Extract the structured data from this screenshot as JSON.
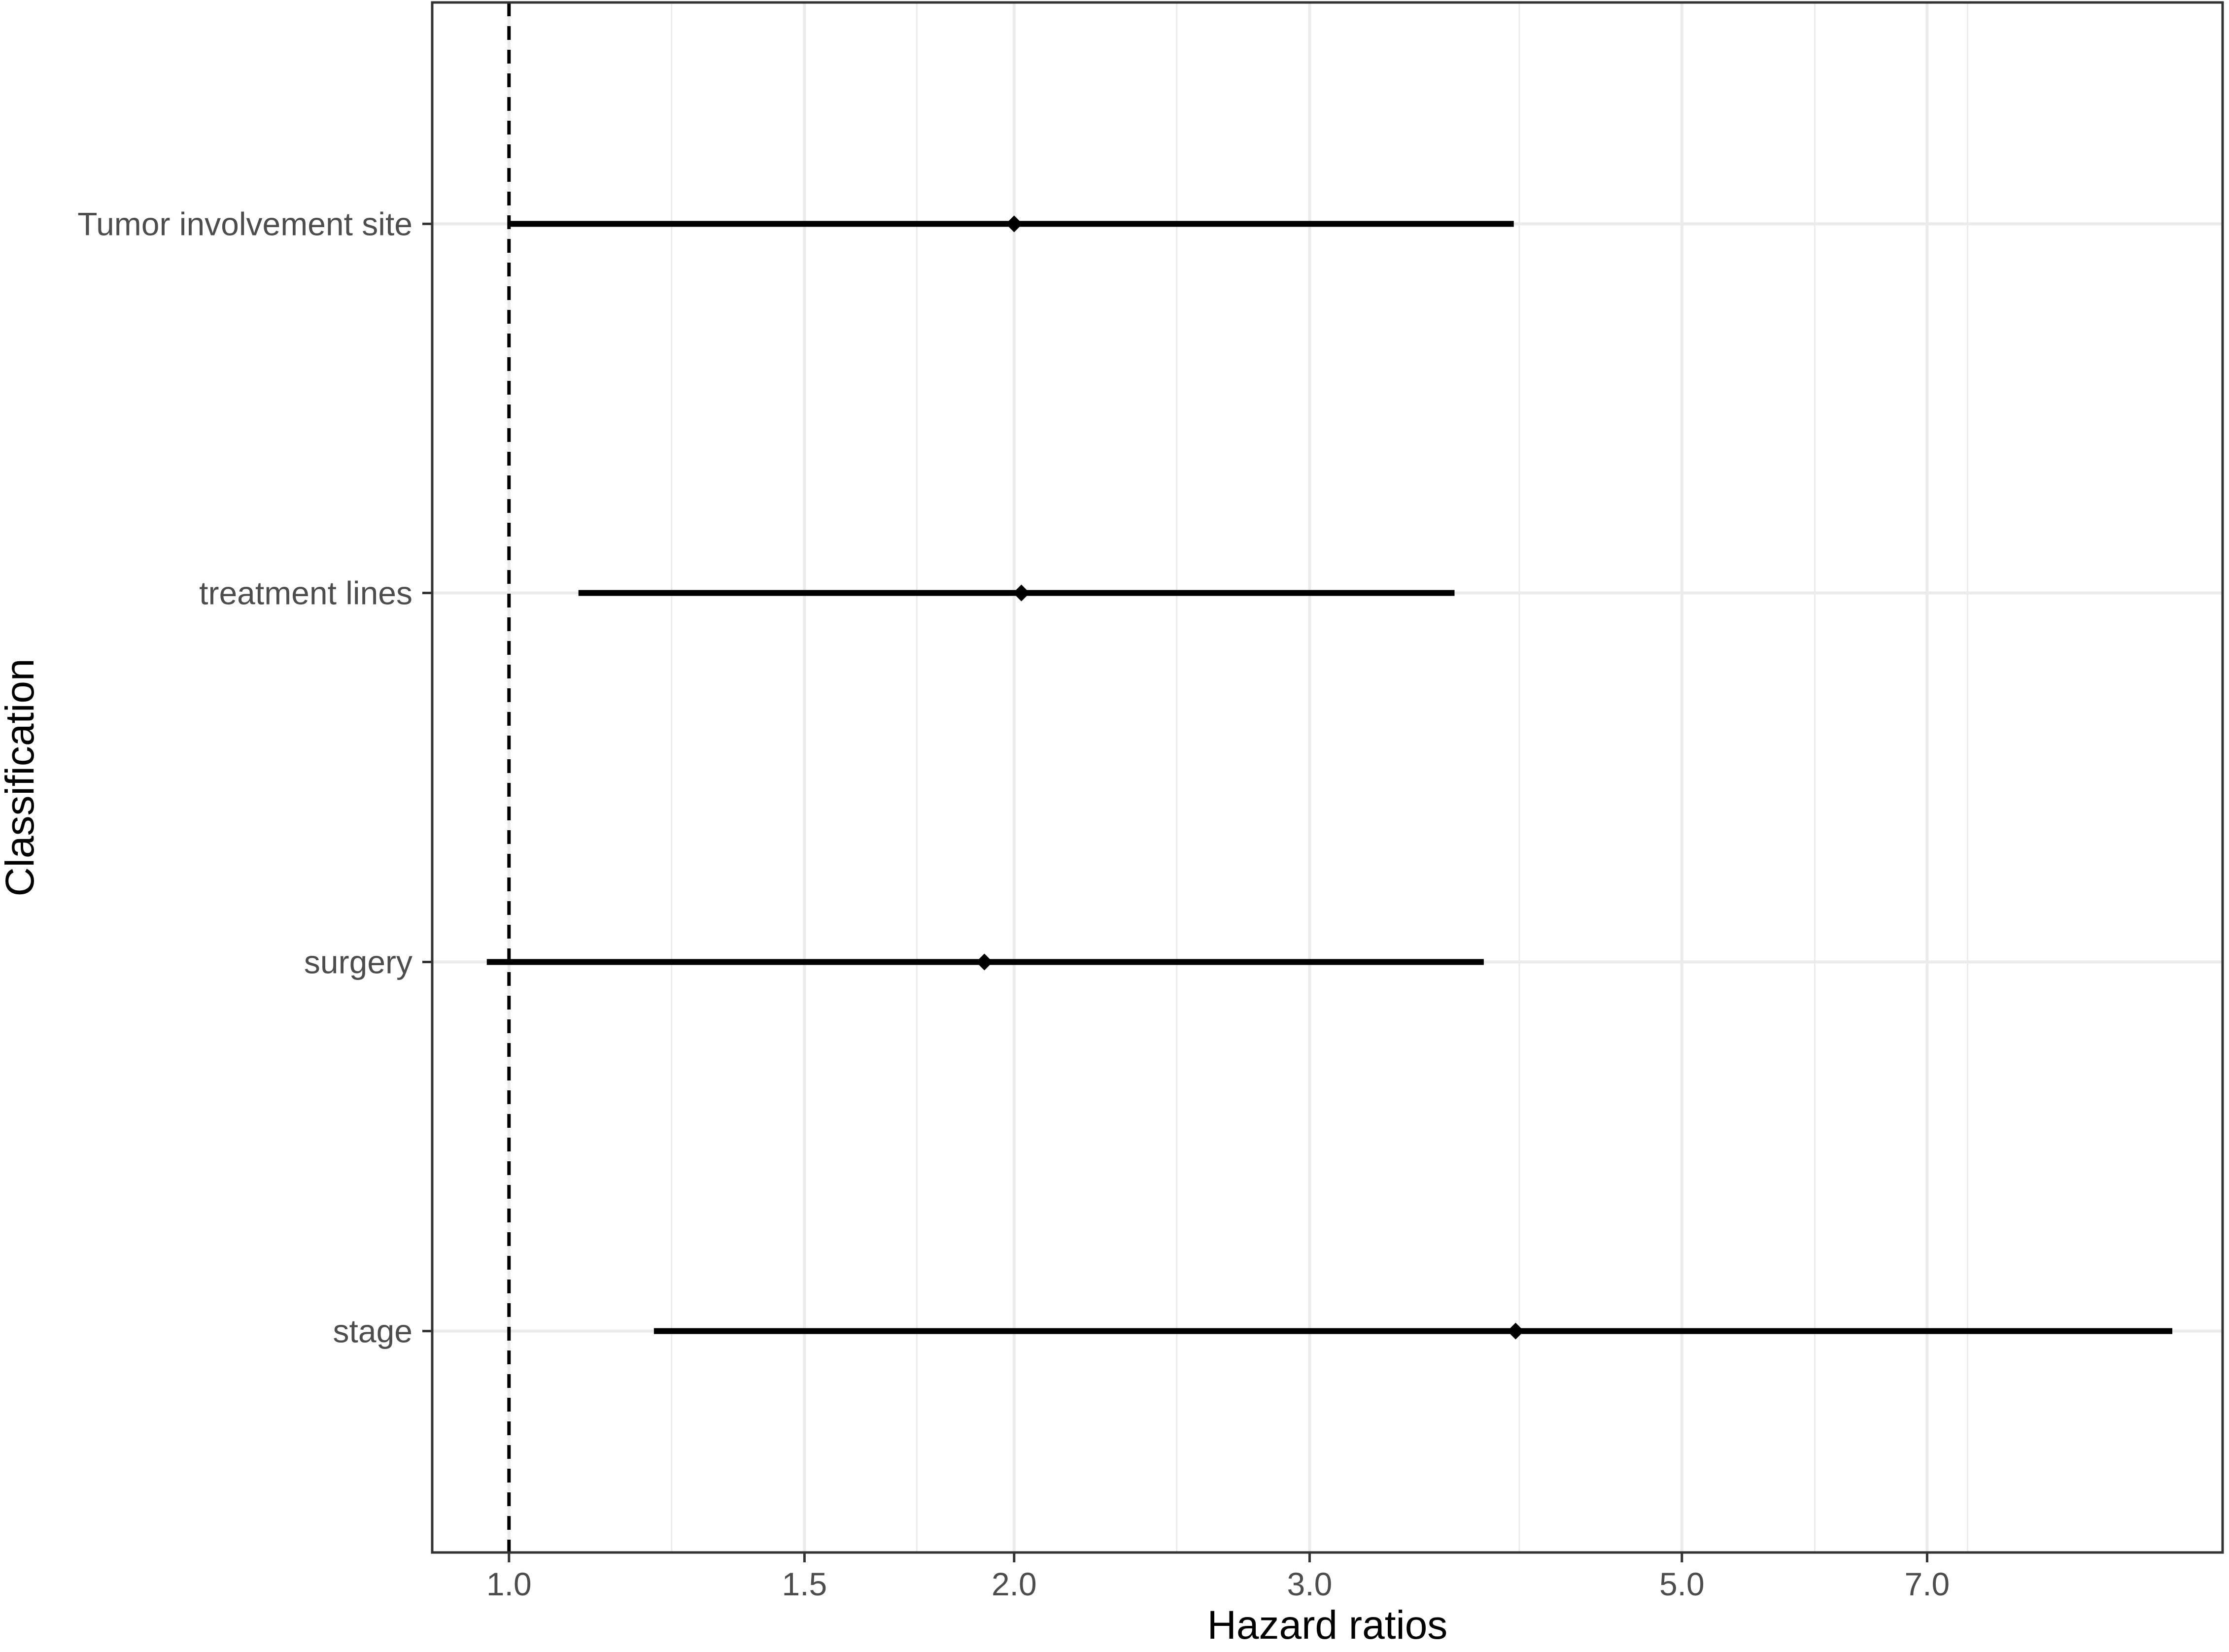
{
  "chart_data": {
    "type": "forest",
    "xlabel": "Hazard ratios",
    "ylabel": "Classification",
    "x_scale": "log",
    "xlim": [
      0.9,
      10.5
    ],
    "x_ticks": [
      {
        "value": 1.0,
        "label": "1.0"
      },
      {
        "value": 1.5,
        "label": "1.5"
      },
      {
        "value": 2.0,
        "label": "2.0"
      },
      {
        "value": 3.0,
        "label": "3.0"
      },
      {
        "value": 5.0,
        "label": "5.0"
      },
      {
        "value": 7.0,
        "label": "7.0"
      }
    ],
    "minor_gridlines": [
      1.25,
      1.75,
      2.5,
      4.0,
      6.0,
      7.4
    ],
    "reference_line": 1.0,
    "grid": true,
    "legend": "none",
    "categories": [
      "Tumor involvement site",
      "treatment lines",
      "surgery",
      "stage"
    ],
    "points": [
      {
        "label": "Tumor involvement site",
        "hr": 2.0,
        "lower": 1.0,
        "upper": 3.97
      },
      {
        "label": "treatment lines",
        "hr": 2.02,
        "lower": 1.1,
        "upper": 3.66
      },
      {
        "label": "surgery",
        "hr": 1.92,
        "lower": 0.97,
        "upper": 3.81
      },
      {
        "label": "stage",
        "hr": 3.98,
        "lower": 1.22,
        "upper": 9.8
      }
    ],
    "colors": {
      "line": "#000000",
      "grid": "#ebebeb",
      "border": "#333333"
    }
  }
}
